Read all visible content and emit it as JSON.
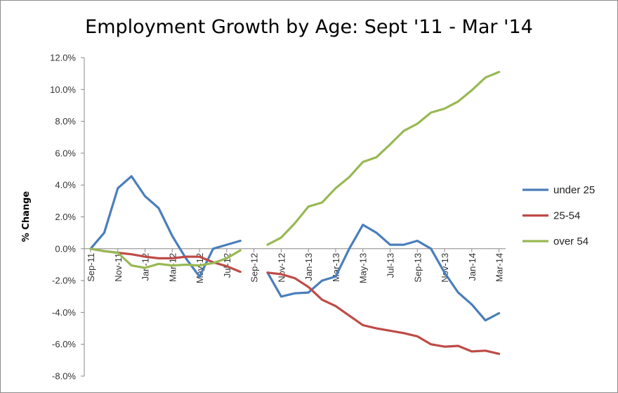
{
  "chart_data": {
    "type": "line",
    "title": "Employment Growth by Age: Sept '11 - Mar '14",
    "ylabel": "% Change",
    "xlabel": "",
    "ylim": [
      -8,
      12
    ],
    "yticks": [
      12,
      10,
      8,
      6,
      4,
      2,
      0,
      -2,
      -4,
      -6,
      -8
    ],
    "ytick_labels": [
      "12.0%",
      "10.0%",
      "8.0%",
      "6.0%",
      "4.0%",
      "2.0%",
      "0.0%",
      "-2.0%",
      "-4.0%",
      "-6.0%",
      "-8.0%"
    ],
    "categories": [
      "Sep-11",
      "Oct-11",
      "Nov-11",
      "Dec-11",
      "Jan-12",
      "Feb-12",
      "Mar-12",
      "Apr-12",
      "May-12",
      "Jun-12",
      "Jul-12",
      "Aug-12",
      "Sep-12",
      "Oct-12",
      "Nov-12",
      "Dec-12",
      "Jan-13",
      "Feb-13",
      "Mar-13",
      "Apr-13",
      "May-13",
      "Jun-13",
      "Jul-13",
      "Aug-13",
      "Sep-13",
      "Oct-13",
      "Nov-13",
      "Dec-13",
      "Jan-14",
      "Feb-14",
      "Mar-14"
    ],
    "xtick_labels": [
      "Sep-11",
      "Nov-11",
      "Jan-12",
      "Mar-12",
      "May-12",
      "Jul-12",
      "Sep-12",
      "Nov-12",
      "Jan-13",
      "Mar-13",
      "May-13",
      "Jul-13",
      "Sep-13",
      "Nov-13",
      "Jan-14",
      "Mar-14"
    ],
    "grid": false,
    "legend_position": "right",
    "series": [
      {
        "name": "under 25",
        "color": "#4a7ebb",
        "values": [
          0.0,
          1.0,
          3.8,
          4.55,
          3.3,
          2.55,
          0.8,
          -0.6,
          -1.75,
          0.0,
          0.25,
          0.5,
          null,
          -1.5,
          -3.0,
          -2.8,
          -2.75,
          -2.0,
          -1.75,
          0.0,
          1.5,
          1.0,
          0.25,
          0.25,
          0.5,
          0.0,
          -1.5,
          -2.75,
          -3.5,
          -4.5,
          -4.05
        ]
      },
      {
        "name": "25-54",
        "color": "#be4b48",
        "values": [
          0.0,
          -0.15,
          -0.25,
          -0.35,
          -0.5,
          -0.6,
          -0.6,
          -0.5,
          -0.5,
          -0.85,
          -1.1,
          -1.45,
          null,
          -1.5,
          -1.6,
          -1.85,
          -2.4,
          -3.2,
          -3.6,
          -4.2,
          -4.8,
          -5.0,
          -5.15,
          -5.3,
          -5.5,
          -6.0,
          -6.15,
          -6.1,
          -6.45,
          -6.4,
          -6.6
        ]
      },
      {
        "name": "over 54",
        "color": "#98b954",
        "values": [
          0.0,
          -0.15,
          -0.25,
          -1.05,
          -1.2,
          -0.95,
          -1.05,
          -1.0,
          -1.05,
          -0.9,
          -0.6,
          -0.1,
          null,
          0.25,
          0.7,
          1.6,
          2.65,
          2.9,
          3.8,
          4.5,
          5.45,
          5.75,
          6.55,
          7.4,
          7.85,
          8.55,
          8.8,
          9.25,
          9.95,
          10.75,
          11.1
        ]
      }
    ]
  }
}
